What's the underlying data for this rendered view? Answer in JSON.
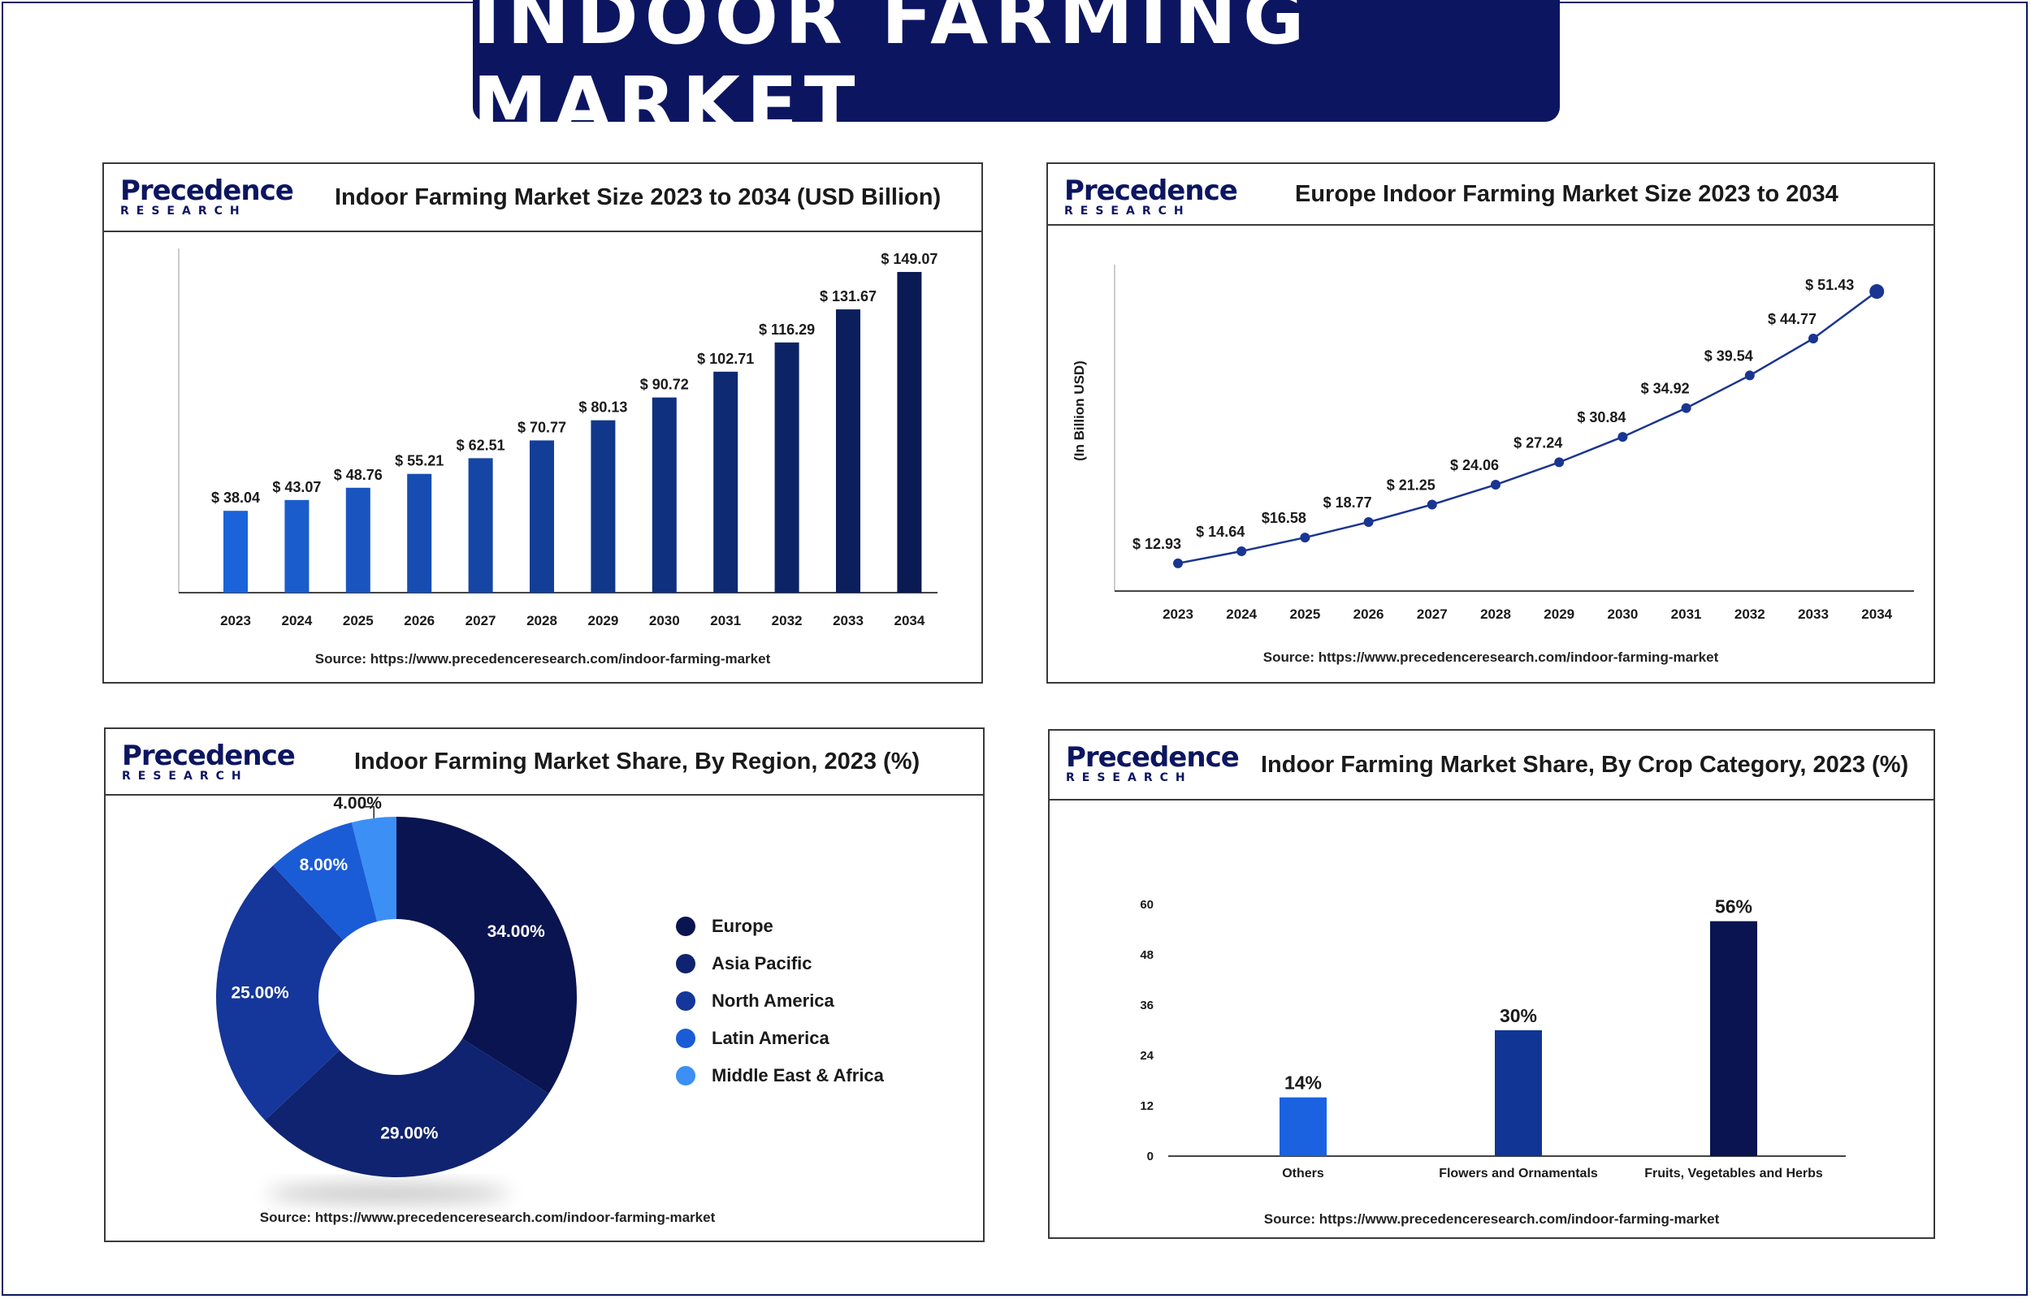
{
  "page_title": "INDOOR FARMING MARKET",
  "logo": {
    "line1": "Precedence",
    "line2": "RESEARCH"
  },
  "source_text": "Source: https://www.precedenceresearch.com/indoor-farming-market",
  "colors": {
    "navy": "#0c1660",
    "light_blue": "#1f6ef0"
  },
  "chart_data": [
    {
      "type": "bar",
      "title": "Indoor Farming Market Size 2023 to 2034 (USD Billion)",
      "categories": [
        "2023",
        "2024",
        "2025",
        "2026",
        "2027",
        "2028",
        "2029",
        "2030",
        "2031",
        "2032",
        "2033",
        "2034"
      ],
      "values": [
        38.04,
        43.07,
        48.76,
        55.21,
        62.51,
        70.77,
        80.13,
        90.72,
        102.71,
        116.29,
        131.67,
        149.07
      ],
      "data_labels": [
        "$ 38.04",
        "$ 43.07",
        "$ 48.76",
        "$ 55.21",
        "$ 62.51",
        "$ 70.77",
        "$ 80.13",
        "$ 90.72",
        "$ 102.71",
        "$ 116.29",
        "$ 131.67",
        "$ 149.07"
      ],
      "colors": [
        "#1a63d8",
        "#1a5ccc",
        "#1a55bf",
        "#174db2",
        "#1546a5",
        "#133e98",
        "#11378b",
        "#0f307e",
        "#0d2a72",
        "#0c2466",
        "#0b1f5c",
        "#0a1a52"
      ],
      "ylim": [
        0,
        160
      ]
    },
    {
      "type": "line",
      "title": "Europe Indoor Farming Market Size 2023 to 2034",
      "ylabel": "(In Billion USD)",
      "x": [
        "2023",
        "2024",
        "2025",
        "2026",
        "2027",
        "2028",
        "2029",
        "2030",
        "2031",
        "2032",
        "2033",
        "2034"
      ],
      "values": [
        12.93,
        14.64,
        16.58,
        18.77,
        21.25,
        24.06,
        27.24,
        30.84,
        34.92,
        39.54,
        44.77,
        51.43
      ],
      "data_labels": [
        "$ 12.93",
        "$ 14.64",
        "$16.58",
        "$ 18.77",
        "$ 21.25",
        "$ 24.06",
        "$ 27.24",
        "$ 30.84",
        "$ 34.92",
        "$ 39.54",
        "$ 44.77",
        "$ 51.43"
      ],
      "color": "#1a3590",
      "ylim": [
        9,
        55
      ]
    },
    {
      "type": "pie",
      "title": "Indoor Farming Market Share, By Region, 2023 (%)",
      "categories": [
        "Europe",
        "Asia Pacific",
        "North America",
        "Latin America",
        "Middle East & Africa"
      ],
      "values": [
        34,
        29,
        25,
        8,
        4
      ],
      "data_labels": [
        "34.00%",
        "29.00%",
        "25.00%",
        "8.00%",
        "4.00%"
      ],
      "colors": [
        "#0a1450",
        "#0f2370",
        "#15369a",
        "#1a5cd6",
        "#3c8ff5"
      ],
      "legend_position": "right"
    },
    {
      "type": "bar",
      "title": "Indoor Farming Market Share, By Crop Category, 2023 (%)",
      "categories": [
        "Others",
        "Flowers and Ornamentals",
        "Fruits, Vegetables and Herbs"
      ],
      "values": [
        14,
        30,
        56
      ],
      "data_labels": [
        "14%",
        "30%",
        "56%"
      ],
      "colors": [
        "#1a62e0",
        "#103595",
        "#0a1450"
      ],
      "yticks": [
        "0",
        "12",
        "24",
        "36",
        "48",
        "60"
      ],
      "ylim": [
        0,
        60
      ]
    }
  ]
}
